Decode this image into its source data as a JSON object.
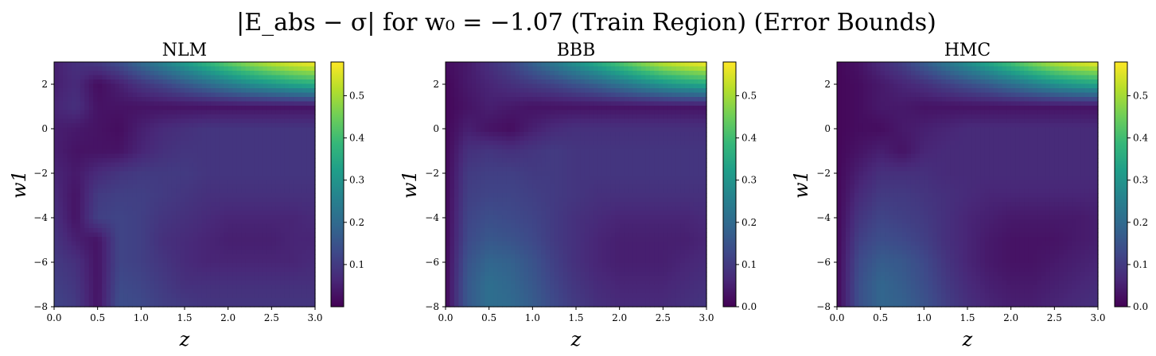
{
  "figure": {
    "title": "|E_abs − σ| for w₀ = −1.07 (Train Region) (Error Bounds)"
  },
  "colormap": {
    "name": "viridis",
    "stops": [
      "#440154",
      "#482878",
      "#3e4989",
      "#31688e",
      "#26828e",
      "#1f9e89",
      "#35b779",
      "#6ece58",
      "#b5de2b",
      "#fde725"
    ]
  },
  "chart_data": [
    {
      "type": "heatmap",
      "title": "NLM",
      "xlabel": "z",
      "ylabel": "w1",
      "xlim": [
        0.0,
        3.0
      ],
      "ylim": [
        -8,
        3
      ],
      "x_ticks": [
        "0.0",
        "0.5",
        "1.0",
        "1.5",
        "2.0",
        "2.5",
        "3.0"
      ],
      "y_ticks": [
        "2",
        "0",
        "−2",
        "−4",
        "−6",
        "−8"
      ],
      "colorbar": {
        "vmin": 0.0,
        "vmax": 0.58,
        "ticks": [
          "0.1",
          "0.2",
          "0.3",
          "0.4",
          "0.5"
        ]
      },
      "z_grid": [
        0.0,
        0.25,
        0.5,
        0.75,
        1.0,
        1.25,
        1.5,
        1.75,
        2.0,
        2.25,
        2.5,
        2.75,
        3.0
      ],
      "w1_grid": [
        3,
        2,
        1,
        0,
        -1,
        -2,
        -3,
        -4,
        -5,
        -6,
        -7,
        -8
      ],
      "values": [
        [
          0.05,
          0.08,
          0.1,
          0.14,
          0.2,
          0.26,
          0.32,
          0.38,
          0.44,
          0.49,
          0.53,
          0.56,
          0.58
        ],
        [
          0.05,
          0.07,
          0.02,
          0.05,
          0.09,
          0.12,
          0.16,
          0.2,
          0.24,
          0.28,
          0.31,
          0.34,
          0.36
        ],
        [
          0.06,
          0.08,
          0.03,
          0.03,
          0.03,
          0.03,
          0.03,
          0.03,
          0.03,
          0.03,
          0.03,
          0.03,
          0.03
        ],
        [
          0.05,
          0.04,
          0.03,
          0.02,
          0.05,
          0.07,
          0.08,
          0.09,
          0.09,
          0.09,
          0.09,
          0.09,
          0.09
        ],
        [
          0.05,
          0.03,
          0.03,
          0.03,
          0.06,
          0.08,
          0.09,
          0.09,
          0.09,
          0.09,
          0.09,
          0.09,
          0.09
        ],
        [
          0.06,
          0.04,
          0.07,
          0.09,
          0.1,
          0.1,
          0.1,
          0.09,
          0.09,
          0.09,
          0.09,
          0.09,
          0.09
        ],
        [
          0.07,
          0.03,
          0.1,
          0.11,
          0.11,
          0.1,
          0.09,
          0.08,
          0.08,
          0.08,
          0.08,
          0.08,
          0.08
        ],
        [
          0.08,
          0.03,
          0.11,
          0.12,
          0.11,
          0.09,
          0.08,
          0.07,
          0.06,
          0.06,
          0.06,
          0.06,
          0.07
        ],
        [
          0.09,
          0.05,
          0.03,
          0.12,
          0.11,
          0.08,
          0.07,
          0.06,
          0.05,
          0.05,
          0.05,
          0.06,
          0.06
        ],
        [
          0.1,
          0.08,
          0.03,
          0.12,
          0.11,
          0.09,
          0.07,
          0.06,
          0.06,
          0.06,
          0.06,
          0.06,
          0.07
        ],
        [
          0.11,
          0.09,
          0.03,
          0.13,
          0.12,
          0.1,
          0.08,
          0.08,
          0.08,
          0.08,
          0.08,
          0.08,
          0.08
        ],
        [
          0.12,
          0.1,
          0.03,
          0.14,
          0.13,
          0.11,
          0.1,
          0.09,
          0.09,
          0.09,
          0.09,
          0.09,
          0.09
        ]
      ]
    },
    {
      "type": "heatmap",
      "title": "BBB",
      "xlabel": "z",
      "ylabel": "w1",
      "xlim": [
        0.0,
        3.0
      ],
      "ylim": [
        -8,
        3
      ],
      "x_ticks": [
        "0.0",
        "0.5",
        "1.0",
        "1.5",
        "2.0",
        "2.5",
        "3.0"
      ],
      "y_ticks": [
        "2",
        "0",
        "−2",
        "−4",
        "−6",
        "−8"
      ],
      "colorbar": {
        "vmin": 0.0,
        "vmax": 0.58,
        "ticks": [
          "0.0",
          "0.1",
          "0.2",
          "0.3",
          "0.4",
          "0.5"
        ]
      },
      "z_grid": [
        0.0,
        0.25,
        0.5,
        0.75,
        1.0,
        1.25,
        1.5,
        1.75,
        2.0,
        2.25,
        2.5,
        2.75,
        3.0
      ],
      "w1_grid": [
        3,
        2,
        1,
        0,
        -1,
        -2,
        -3,
        -4,
        -5,
        -6,
        -7,
        -8
      ],
      "values": [
        [
          0.02,
          0.04,
          0.08,
          0.12,
          0.18,
          0.24,
          0.3,
          0.36,
          0.42,
          0.48,
          0.53,
          0.56,
          0.58
        ],
        [
          0.01,
          0.04,
          0.06,
          0.08,
          0.1,
          0.12,
          0.15,
          0.18,
          0.22,
          0.26,
          0.3,
          0.33,
          0.35
        ],
        [
          0.01,
          0.03,
          0.05,
          0.04,
          0.03,
          0.03,
          0.03,
          0.03,
          0.03,
          0.03,
          0.03,
          0.03,
          0.03
        ],
        [
          0.01,
          0.05,
          0.03,
          0.02,
          0.05,
          0.07,
          0.08,
          0.08,
          0.08,
          0.08,
          0.08,
          0.08,
          0.08
        ],
        [
          0.01,
          0.08,
          0.09,
          0.08,
          0.09,
          0.1,
          0.09,
          0.09,
          0.09,
          0.09,
          0.09,
          0.09,
          0.09
        ],
        [
          0.01,
          0.1,
          0.11,
          0.11,
          0.1,
          0.1,
          0.09,
          0.09,
          0.09,
          0.09,
          0.09,
          0.09,
          0.09
        ],
        [
          0.01,
          0.11,
          0.12,
          0.12,
          0.11,
          0.1,
          0.09,
          0.08,
          0.08,
          0.08,
          0.08,
          0.08,
          0.08
        ],
        [
          0.01,
          0.12,
          0.14,
          0.13,
          0.12,
          0.1,
          0.08,
          0.07,
          0.06,
          0.06,
          0.06,
          0.06,
          0.07
        ],
        [
          0.01,
          0.13,
          0.16,
          0.15,
          0.13,
          0.1,
          0.08,
          0.06,
          0.05,
          0.05,
          0.05,
          0.05,
          0.06
        ],
        [
          0.01,
          0.15,
          0.19,
          0.18,
          0.15,
          0.11,
          0.08,
          0.06,
          0.05,
          0.05,
          0.05,
          0.06,
          0.07
        ],
        [
          0.01,
          0.16,
          0.21,
          0.19,
          0.16,
          0.12,
          0.09,
          0.07,
          0.06,
          0.06,
          0.06,
          0.07,
          0.08
        ],
        [
          0.01,
          0.16,
          0.21,
          0.2,
          0.17,
          0.13,
          0.1,
          0.08,
          0.07,
          0.07,
          0.07,
          0.08,
          0.09
        ]
      ]
    },
    {
      "type": "heatmap",
      "title": "HMC",
      "xlabel": "z",
      "ylabel": "w1",
      "xlim": [
        0.0,
        3.0
      ],
      "ylim": [
        -8,
        3
      ],
      "x_ticks": [
        "0.0",
        "0.5",
        "1.0",
        "1.5",
        "2.0",
        "2.5",
        "3.0"
      ],
      "y_ticks": [
        "2",
        "0",
        "−2",
        "−4",
        "−6",
        "−8"
      ],
      "colorbar": {
        "vmin": 0.0,
        "vmax": 0.58,
        "ticks": [
          "0.0",
          "0.1",
          "0.2",
          "0.3",
          "0.4",
          "0.5"
        ]
      },
      "z_grid": [
        0.0,
        0.25,
        0.5,
        0.75,
        1.0,
        1.25,
        1.5,
        1.75,
        2.0,
        2.25,
        2.5,
        2.75,
        3.0
      ],
      "w1_grid": [
        3,
        2,
        1,
        0,
        -1,
        -2,
        -3,
        -4,
        -5,
        -6,
        -7,
        -8
      ],
      "values": [
        [
          0.01,
          0.03,
          0.07,
          0.11,
          0.17,
          0.23,
          0.29,
          0.35,
          0.41,
          0.47,
          0.52,
          0.55,
          0.57
        ],
        [
          0.01,
          0.02,
          0.04,
          0.06,
          0.08,
          0.11,
          0.14,
          0.17,
          0.21,
          0.25,
          0.29,
          0.32,
          0.34
        ],
        [
          0.01,
          0.02,
          0.04,
          0.04,
          0.03,
          0.03,
          0.03,
          0.03,
          0.03,
          0.03,
          0.03,
          0.03,
          0.03
        ],
        [
          0.01,
          0.02,
          0.02,
          0.04,
          0.05,
          0.06,
          0.07,
          0.07,
          0.07,
          0.07,
          0.07,
          0.07,
          0.07
        ],
        [
          0.01,
          0.03,
          0.05,
          0.03,
          0.06,
          0.07,
          0.07,
          0.07,
          0.07,
          0.07,
          0.07,
          0.07,
          0.07
        ],
        [
          0.01,
          0.05,
          0.08,
          0.08,
          0.08,
          0.07,
          0.07,
          0.07,
          0.07,
          0.07,
          0.07,
          0.07,
          0.07
        ],
        [
          0.01,
          0.07,
          0.1,
          0.1,
          0.09,
          0.08,
          0.07,
          0.06,
          0.06,
          0.06,
          0.06,
          0.06,
          0.06
        ],
        [
          0.01,
          0.09,
          0.12,
          0.11,
          0.1,
          0.08,
          0.06,
          0.05,
          0.04,
          0.04,
          0.04,
          0.04,
          0.05
        ],
        [
          0.01,
          0.11,
          0.14,
          0.13,
          0.11,
          0.08,
          0.06,
          0.04,
          0.03,
          0.03,
          0.03,
          0.04,
          0.05
        ],
        [
          0.01,
          0.13,
          0.17,
          0.16,
          0.13,
          0.09,
          0.06,
          0.04,
          0.03,
          0.03,
          0.04,
          0.05,
          0.06
        ],
        [
          0.01,
          0.14,
          0.19,
          0.17,
          0.14,
          0.1,
          0.07,
          0.05,
          0.04,
          0.04,
          0.05,
          0.06,
          0.07
        ],
        [
          0.01,
          0.14,
          0.19,
          0.18,
          0.15,
          0.11,
          0.08,
          0.06,
          0.05,
          0.05,
          0.06,
          0.07,
          0.08
        ]
      ]
    }
  ]
}
